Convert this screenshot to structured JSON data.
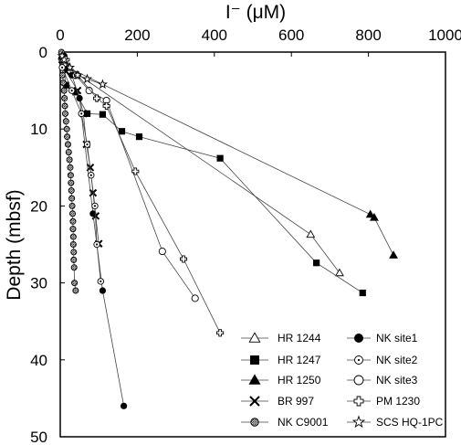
{
  "chart_data": {
    "type": "scatter",
    "xlabel": "I⁻ (μM)",
    "ylabel": "Depth (mbsf)",
    "xlim": [
      0,
      1000
    ],
    "ylim": [
      0,
      50
    ],
    "y_inverted": true,
    "x_axis_position": "top",
    "x_ticks": [
      "0",
      "200",
      "400",
      "600",
      "800",
      "1000"
    ],
    "y_ticks": [
      "0",
      "10",
      "20",
      "30",
      "40",
      "50"
    ],
    "legend_position": "bottom-right",
    "series": [
      {
        "name": "HR 1244",
        "marker": "triangle-open",
        "points": [
          [
            5,
            0.5
          ],
          [
            20,
            2
          ],
          [
            650,
            23.7
          ],
          [
            725,
            28.7
          ]
        ]
      },
      {
        "name": "HR 1247",
        "marker": "square-filled",
        "points": [
          [
            5,
            1
          ],
          [
            15,
            4.3
          ],
          [
            40,
            5.2
          ],
          [
            70,
            8
          ],
          [
            110,
            8.1
          ],
          [
            160,
            10.3
          ],
          [
            205,
            11
          ],
          [
            415,
            13.8
          ],
          [
            665,
            27.4
          ],
          [
            785,
            31.3
          ]
        ]
      },
      {
        "name": "HR 1250",
        "marker": "triangle-filled",
        "points": [
          [
            8,
            0.5
          ],
          [
            20,
            2
          ],
          [
            805,
            21.1
          ],
          [
            815,
            21.5
          ],
          [
            865,
            26.4
          ]
        ]
      },
      {
        "name": "BR 997",
        "marker": "x",
        "points": [
          [
            5,
            1
          ],
          [
            15,
            2.5
          ],
          [
            45,
            5
          ],
          [
            60,
            8
          ],
          [
            68,
            12
          ],
          [
            78,
            15
          ],
          [
            85,
            18.3
          ],
          [
            92,
            21.3
          ],
          [
            100,
            24.9
          ]
        ]
      },
      {
        "name": "NK C9001",
        "marker": "circle-hatched",
        "points": [
          [
            3,
            0
          ],
          [
            4,
            1
          ],
          [
            5,
            2
          ],
          [
            6,
            3
          ],
          [
            8,
            4
          ],
          [
            10,
            5
          ],
          [
            11,
            6
          ],
          [
            12,
            7
          ],
          [
            13,
            8
          ],
          [
            15,
            9
          ],
          [
            17,
            10
          ],
          [
            18,
            11
          ],
          [
            20,
            12
          ],
          [
            22,
            13
          ],
          [
            24,
            14
          ],
          [
            26,
            15
          ],
          [
            27,
            16
          ],
          [
            28,
            17
          ],
          [
            29,
            18
          ],
          [
            30,
            19
          ],
          [
            31,
            20
          ],
          [
            32,
            21
          ],
          [
            33,
            22
          ],
          [
            33,
            23
          ],
          [
            34,
            24
          ],
          [
            34,
            25
          ],
          [
            35,
            26
          ],
          [
            35,
            27
          ],
          [
            36,
            28
          ],
          [
            37,
            30
          ],
          [
            40,
            31
          ]
        ]
      },
      {
        "name": "NK site1",
        "marker": "circle-filled",
        "points": [
          [
            10,
            0.5
          ],
          [
            30,
            3
          ],
          [
            50,
            6
          ],
          [
            85,
            21
          ],
          [
            110,
            31
          ],
          [
            165,
            46
          ]
        ]
      },
      {
        "name": "NK site2",
        "marker": "circle-dot",
        "points": [
          [
            5,
            2
          ],
          [
            30,
            5
          ],
          [
            55,
            8
          ],
          [
            70,
            12
          ],
          [
            80,
            16
          ],
          [
            90,
            20
          ],
          [
            95,
            25
          ],
          [
            105,
            29.8
          ]
        ]
      },
      {
        "name": "NK site3",
        "marker": "circle-open",
        "points": [
          [
            10,
            1
          ],
          [
            40,
            3
          ],
          [
            75,
            5
          ],
          [
            120,
            6.3
          ],
          [
            265,
            25.9
          ],
          [
            350,
            32
          ]
        ]
      },
      {
        "name": "PM 1230",
        "marker": "plus-open",
        "points": [
          [
            15,
            1
          ],
          [
            45,
            3
          ],
          [
            95,
            6
          ],
          [
            120,
            7
          ],
          [
            195,
            15.5
          ],
          [
            320,
            26.9
          ],
          [
            415,
            36.5
          ]
        ]
      },
      {
        "name": "SCS HQ-1PC",
        "marker": "star-open",
        "points": [
          [
            5,
            0.5
          ],
          [
            10,
            1
          ],
          [
            25,
            2
          ],
          [
            45,
            3
          ],
          [
            70,
            3.5
          ],
          [
            110,
            4.2
          ]
        ]
      }
    ]
  }
}
